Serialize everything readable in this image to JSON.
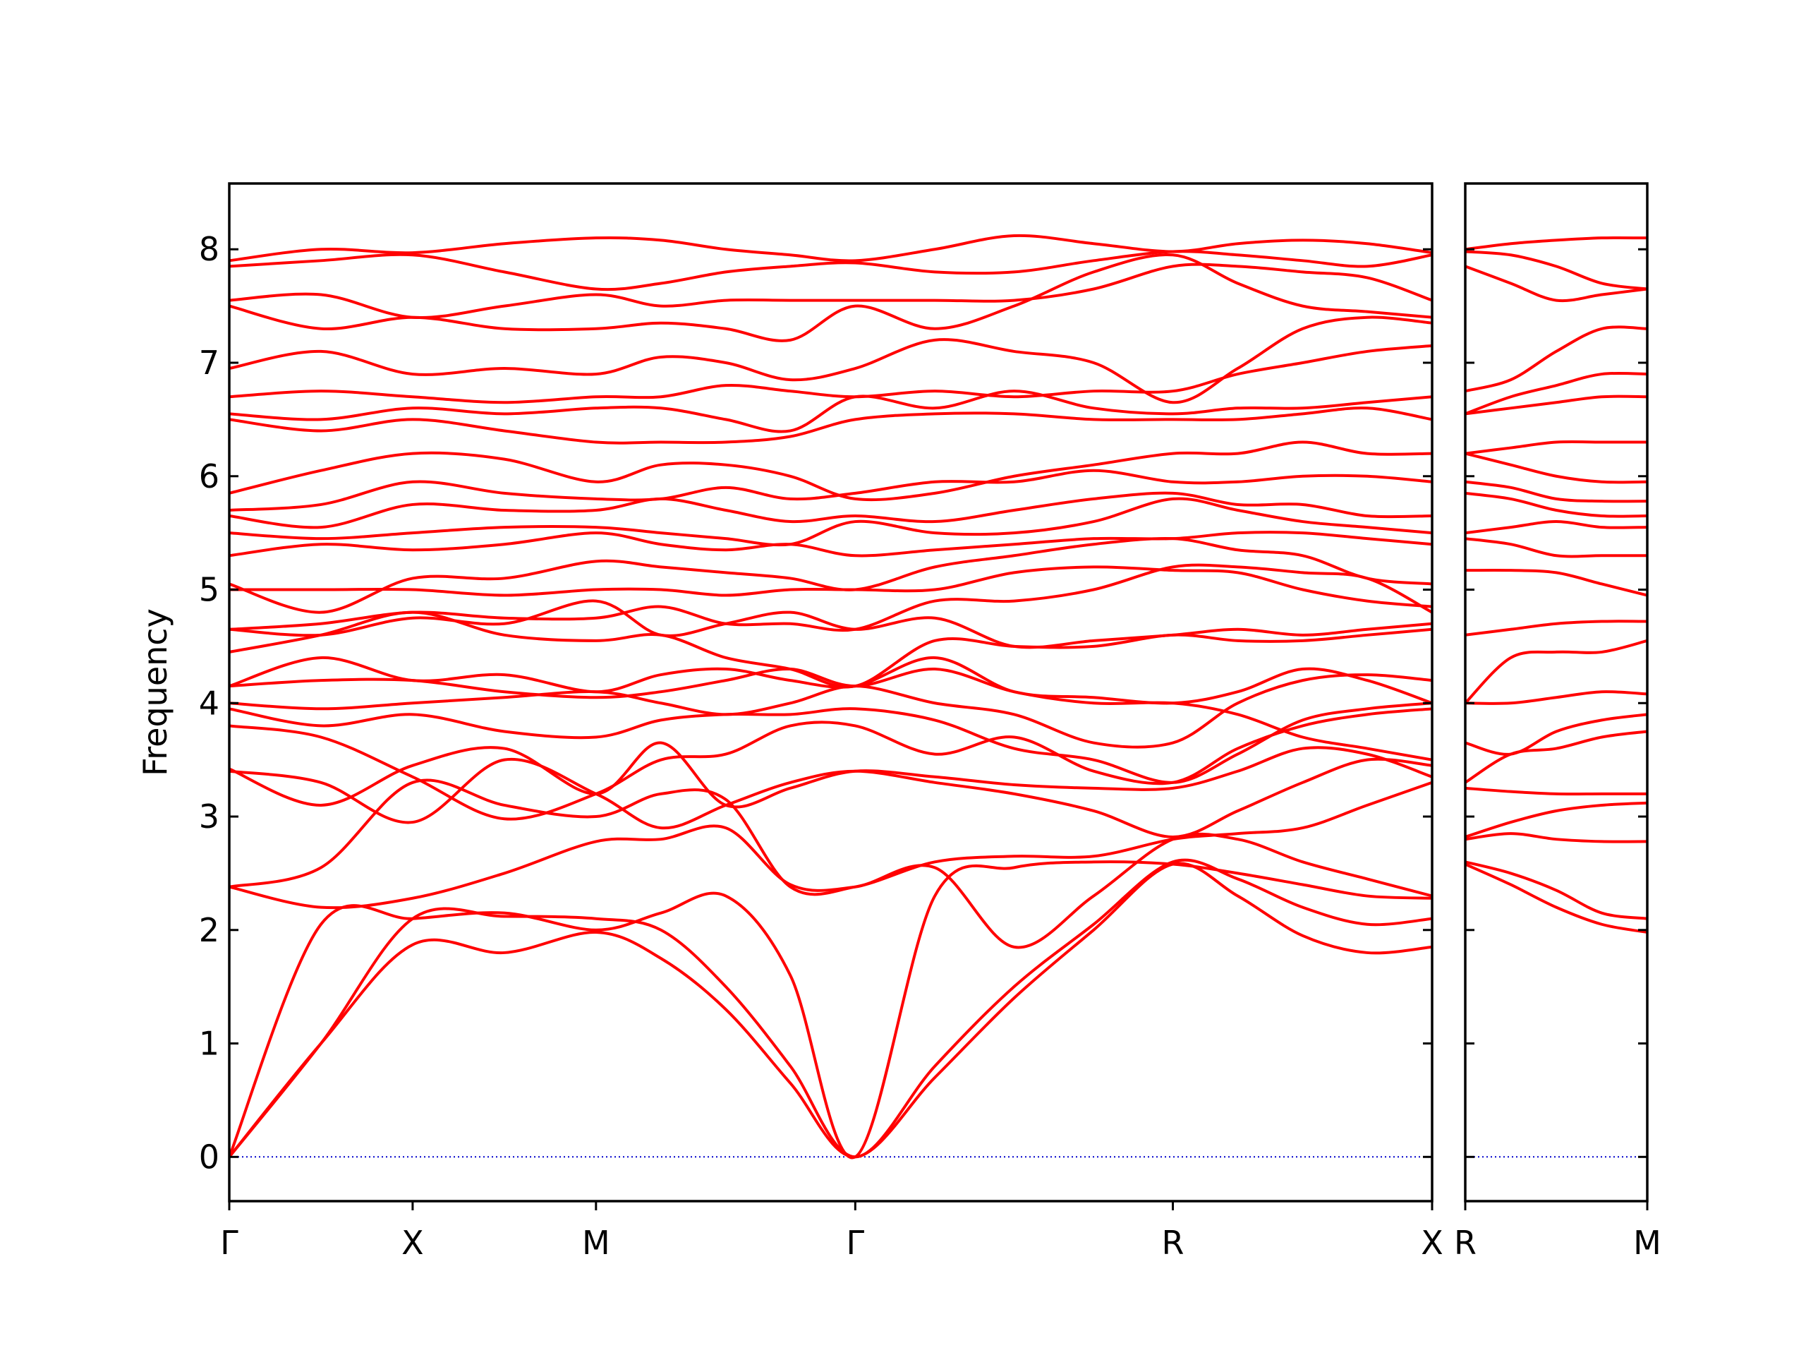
{
  "chart_data": [
    {
      "type": "line",
      "ylabel": "Frequency",
      "color": "#ff0000",
      "xlim": [
        0,
        3.28
      ],
      "ylim": [
        -0.39,
        8.58
      ],
      "xticks": [
        {
          "value": 0,
          "label": "Γ"
        },
        {
          "value": 0.5,
          "label": "X"
        },
        {
          "value": 1.0,
          "label": "M"
        },
        {
          "value": 1.707,
          "label": "Γ"
        },
        {
          "value": 2.573,
          "label": "R"
        },
        {
          "value": 3.28,
          "label": "X"
        }
      ],
      "yticks": [
        0,
        1,
        2,
        3,
        4,
        5,
        6,
        7,
        8
      ],
      "x": [
        0,
        0.25,
        0.5,
        0.75,
        1.0,
        1.177,
        1.354,
        1.53,
        1.707,
        1.924,
        2.14,
        2.357,
        2.573,
        2.75,
        2.927,
        3.103,
        3.28
      ],
      "series": [
        {
          "values": [
            0,
            1.0,
            1.87,
            1.8,
            1.98,
            1.75,
            1.3,
            0.65,
            0,
            0.7,
            1.4,
            2.0,
            2.58,
            2.3,
            1.95,
            1.8,
            1.85
          ]
        },
        {
          "values": [
            0,
            1.0,
            2.1,
            2.12,
            2.1,
            2.0,
            1.5,
            0.8,
            0,
            0.8,
            1.5,
            2.05,
            2.6,
            2.45,
            2.2,
            2.05,
            2.1
          ]
        },
        {
          "values": [
            0,
            2.05,
            2.1,
            2.15,
            2.0,
            2.15,
            2.3,
            1.6,
            0,
            2.3,
            2.55,
            2.6,
            2.58,
            2.5,
            2.4,
            2.3,
            2.28
          ]
        },
        {
          "values": [
            2.38,
            2.2,
            2.28,
            2.5,
            2.78,
            2.8,
            2.9,
            2.4,
            2.38,
            2.55,
            1.85,
            2.3,
            2.8,
            2.8,
            2.6,
            2.45,
            2.3
          ]
        },
        {
          "values": [
            2.38,
            2.55,
            3.3,
            3.1,
            3.0,
            3.2,
            3.15,
            2.38,
            2.38,
            2.6,
            2.65,
            2.65,
            2.8,
            2.85,
            2.9,
            3.1,
            3.3
          ]
        },
        {
          "values": [
            3.4,
            3.3,
            2.95,
            3.5,
            3.2,
            2.9,
            3.1,
            3.3,
            3.4,
            3.3,
            3.2,
            3.05,
            2.82,
            3.05,
            3.3,
            3.5,
            3.45
          ]
        },
        {
          "values": [
            3.42,
            3.1,
            3.45,
            3.6,
            3.2,
            3.65,
            3.1,
            3.25,
            3.4,
            3.35,
            3.28,
            3.25,
            3.25,
            3.4,
            3.6,
            3.55,
            3.35
          ]
        },
        {
          "values": [
            3.8,
            3.7,
            3.35,
            2.98,
            3.2,
            3.5,
            3.55,
            3.8,
            3.8,
            3.55,
            3.7,
            3.4,
            3.3,
            3.6,
            3.8,
            3.9,
            3.95
          ]
        },
        {
          "values": [
            3.95,
            3.8,
            3.9,
            3.75,
            3.7,
            3.85,
            3.9,
            3.9,
            3.95,
            3.85,
            3.6,
            3.5,
            3.3,
            3.55,
            3.85,
            3.95,
            4.0
          ]
        },
        {
          "values": [
            4.0,
            3.95,
            4.0,
            4.05,
            4.1,
            4.0,
            3.9,
            4.0,
            4.15,
            4.0,
            3.9,
            3.65,
            3.65,
            4.0,
            4.2,
            4.25,
            4.2
          ]
        },
        {
          "values": [
            4.15,
            4.2,
            4.2,
            4.1,
            4.05,
            4.1,
            4.2,
            4.3,
            4.15,
            4.3,
            4.1,
            4.0,
            4.0,
            3.9,
            3.7,
            3.6,
            3.5
          ]
        },
        {
          "values": [
            4.15,
            4.4,
            4.2,
            4.25,
            4.1,
            4.25,
            4.3,
            4.2,
            4.15,
            4.4,
            4.1,
            4.05,
            4.0,
            4.1,
            4.3,
            4.2,
            4.0
          ]
        },
        {
          "values": [
            4.45,
            4.6,
            4.8,
            4.6,
            4.55,
            4.6,
            4.4,
            4.3,
            4.15,
            4.55,
            4.5,
            4.5,
            4.6,
            4.55,
            4.55,
            4.6,
            4.65
          ]
        },
        {
          "values": [
            4.65,
            4.6,
            4.75,
            4.7,
            4.9,
            4.6,
            4.7,
            4.8,
            4.65,
            4.75,
            4.5,
            4.55,
            4.6,
            4.65,
            4.6,
            4.65,
            4.7
          ]
        },
        {
          "values": [
            4.65,
            4.7,
            4.8,
            4.75,
            4.75,
            4.85,
            4.7,
            4.7,
            4.65,
            4.9,
            4.9,
            5.0,
            5.2,
            5.2,
            5.15,
            5.1,
            4.8
          ]
        },
        {
          "values": [
            5.0,
            5.0,
            5.0,
            4.95,
            5.0,
            5.0,
            4.95,
            5.0,
            5.0,
            5.0,
            5.15,
            5.2,
            5.17,
            5.15,
            5.0,
            4.9,
            4.85
          ]
        },
        {
          "values": [
            5.05,
            4.8,
            5.1,
            5.1,
            5.25,
            5.2,
            5.15,
            5.1,
            5.0,
            5.2,
            5.3,
            5.4,
            5.45,
            5.35,
            5.3,
            5.1,
            5.05
          ]
        },
        {
          "values": [
            5.3,
            5.4,
            5.35,
            5.4,
            5.5,
            5.4,
            5.35,
            5.4,
            5.3,
            5.35,
            5.4,
            5.45,
            5.45,
            5.5,
            5.5,
            5.45,
            5.4
          ]
        },
        {
          "values": [
            5.5,
            5.45,
            5.5,
            5.55,
            5.55,
            5.5,
            5.45,
            5.4,
            5.6,
            5.5,
            5.5,
            5.6,
            5.8,
            5.7,
            5.6,
            5.55,
            5.5
          ]
        },
        {
          "values": [
            5.65,
            5.55,
            5.75,
            5.7,
            5.7,
            5.8,
            5.7,
            5.6,
            5.65,
            5.6,
            5.7,
            5.8,
            5.85,
            5.75,
            5.75,
            5.65,
            5.65
          ]
        },
        {
          "values": [
            5.7,
            5.75,
            5.95,
            5.85,
            5.8,
            5.8,
            5.9,
            5.8,
            5.85,
            5.95,
            5.95,
            6.05,
            5.95,
            5.95,
            6.0,
            6.0,
            5.95
          ]
        },
        {
          "values": [
            5.85,
            6.05,
            6.2,
            6.15,
            5.95,
            6.1,
            6.1,
            6.0,
            5.8,
            5.85,
            6.0,
            6.1,
            6.2,
            6.2,
            6.3,
            6.2,
            6.2
          ]
        },
        {
          "values": [
            6.5,
            6.4,
            6.5,
            6.4,
            6.3,
            6.3,
            6.3,
            6.35,
            6.5,
            6.55,
            6.55,
            6.5,
            6.5,
            6.5,
            6.55,
            6.6,
            6.5
          ]
        },
        {
          "values": [
            6.55,
            6.5,
            6.6,
            6.55,
            6.6,
            6.6,
            6.5,
            6.4,
            6.7,
            6.6,
            6.75,
            6.6,
            6.55,
            6.6,
            6.6,
            6.65,
            6.7
          ]
        },
        {
          "values": [
            6.7,
            6.75,
            6.7,
            6.65,
            6.7,
            6.7,
            6.8,
            6.75,
            6.7,
            6.75,
            6.7,
            6.75,
            6.75,
            6.9,
            7.0,
            7.1,
            7.15
          ]
        },
        {
          "values": [
            6.95,
            7.1,
            6.9,
            6.95,
            6.9,
            7.05,
            7.0,
            6.85,
            6.95,
            7.2,
            7.1,
            7.0,
            6.65,
            6.95,
            7.3,
            7.4,
            7.35
          ]
        },
        {
          "values": [
            7.5,
            7.3,
            7.4,
            7.3,
            7.3,
            7.35,
            7.3,
            7.2,
            7.5,
            7.3,
            7.5,
            7.8,
            7.95,
            7.7,
            7.5,
            7.45,
            7.4
          ]
        },
        {
          "values": [
            7.55,
            7.6,
            7.4,
            7.5,
            7.6,
            7.5,
            7.55,
            7.55,
            7.55,
            7.55,
            7.55,
            7.65,
            7.85,
            7.85,
            7.8,
            7.75,
            7.55
          ]
        },
        {
          "values": [
            7.85,
            7.9,
            7.95,
            7.8,
            7.65,
            7.7,
            7.8,
            7.85,
            7.88,
            7.8,
            7.8,
            7.9,
            7.98,
            7.95,
            7.9,
            7.85,
            7.95
          ]
        },
        {
          "values": [
            7.9,
            8.0,
            7.97,
            8.05,
            8.1,
            8.08,
            8.0,
            7.95,
            7.9,
            8.0,
            8.12,
            8.05,
            7.98,
            8.05,
            8.08,
            8.05,
            7.97
          ]
        }
      ]
    },
    {
      "type": "line",
      "color": "#ff0000",
      "xlim": [
        3.28,
        3.78
      ],
      "ylim": [
        -0.39,
        8.58
      ],
      "xticks": [
        {
          "value": 3.28,
          "label": "R"
        },
        {
          "value": 3.78,
          "label": "M"
        }
      ],
      "yticks": [
        0,
        1,
        2,
        3,
        4,
        5,
        6,
        7,
        8
      ],
      "x": [
        3.28,
        3.405,
        3.53,
        3.655,
        3.78
      ],
      "series": [
        {
          "values": [
            2.58,
            2.4,
            2.2,
            2.05,
            1.98
          ]
        },
        {
          "values": [
            2.6,
            2.5,
            2.35,
            2.15,
            2.1
          ]
        },
        {
          "values": [
            2.8,
            2.85,
            2.8,
            2.78,
            2.78
          ]
        },
        {
          "values": [
            2.82,
            2.95,
            3.05,
            3.1,
            3.12
          ]
        },
        {
          "values": [
            3.25,
            3.22,
            3.2,
            3.2,
            3.2
          ]
        },
        {
          "values": [
            3.3,
            3.55,
            3.6,
            3.7,
            3.75
          ]
        },
        {
          "values": [
            3.65,
            3.55,
            3.75,
            3.85,
            3.9
          ]
        },
        {
          "values": [
            4.0,
            4.0,
            4.05,
            4.1,
            4.08
          ]
        },
        {
          "values": [
            4.0,
            4.4,
            4.45,
            4.45,
            4.55
          ]
        },
        {
          "values": [
            4.6,
            4.65,
            4.7,
            4.72,
            4.72
          ]
        },
        {
          "values": [
            5.17,
            5.17,
            5.15,
            5.05,
            4.95
          ]
        },
        {
          "values": [
            5.45,
            5.4,
            5.3,
            5.3,
            5.3
          ]
        },
        {
          "values": [
            5.5,
            5.55,
            5.6,
            5.55,
            5.55
          ]
        },
        {
          "values": [
            5.85,
            5.8,
            5.7,
            5.65,
            5.65
          ]
        },
        {
          "values": [
            5.95,
            5.9,
            5.8,
            5.78,
            5.78
          ]
        },
        {
          "values": [
            6.2,
            6.25,
            6.3,
            6.3,
            6.3
          ]
        },
        {
          "values": [
            6.2,
            6.1,
            6.0,
            5.95,
            5.95
          ]
        },
        {
          "values": [
            6.55,
            6.6,
            6.65,
            6.7,
            6.7
          ]
        },
        {
          "values": [
            6.55,
            6.7,
            6.8,
            6.9,
            6.9
          ]
        },
        {
          "values": [
            6.75,
            6.85,
            7.1,
            7.3,
            7.3
          ]
        },
        {
          "values": [
            7.85,
            7.7,
            7.55,
            7.6,
            7.65
          ]
        },
        {
          "values": [
            7.98,
            7.95,
            7.85,
            7.7,
            7.65
          ]
        },
        {
          "values": [
            8.0,
            8.05,
            8.08,
            8.1,
            8.1
          ]
        }
      ]
    }
  ]
}
